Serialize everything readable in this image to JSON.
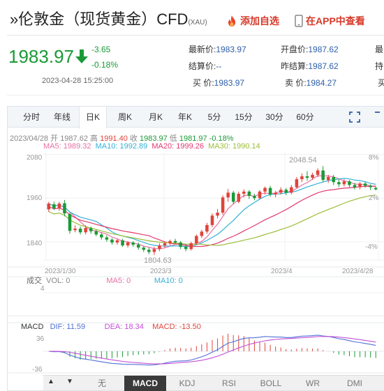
{
  "header": {
    "title": "»伦敦金（现货黄金）CFD",
    "title_unit": "(XAU)",
    "watch_label": "添加自选",
    "app_label": "在APP中查看"
  },
  "quote": {
    "price": "1983.97",
    "change": "-3.65",
    "change_pct": "-0.18%",
    "time": "2023-04-28 15:25:00",
    "fields": [
      {
        "label": "最新价:",
        "value": "1983.97"
      },
      {
        "label": "开盘价:",
        "value": "1987.62"
      },
      {
        "label": "最",
        "value": ""
      },
      {
        "label": "结算价:",
        "value": "--"
      },
      {
        "label": "昨结算:",
        "value": "1987.62"
      },
      {
        "label": "持",
        "value": ""
      },
      {
        "label": "买  价:",
        "value": "1983.97"
      },
      {
        "label": "卖  价:",
        "value": "1984.27"
      },
      {
        "label": "买",
        "value": ""
      }
    ]
  },
  "tabs": [
    "分时",
    "年线",
    "日K",
    "周K",
    "月K",
    "年K",
    "5分",
    "15分",
    "30分",
    "60分"
  ],
  "active_tab": "日K",
  "ohlc": {
    "date": "2023/04/28",
    "open_label": "开",
    "open": "1987.62",
    "high_label": "高",
    "high": "1991.40",
    "close_label": "收",
    "close": "1983.97",
    "low_label": "低",
    "low": "1981.97",
    "pct": "-0.18%"
  },
  "ma": {
    "ma5": "MA5: 1989.32",
    "ma10": "MA10: 1992.89",
    "ma20": "MA20: 1999.26",
    "ma30": "MA30: 1990.14"
  },
  "chart_data": {
    "type": "candlestick",
    "y_ticks": [
      "2080",
      "1960",
      "1840"
    ],
    "y_pct_ticks": [
      "8%",
      "2%",
      "-4%"
    ],
    "x_ticks": [
      "2023/1/30",
      "2023/3",
      "2023/4",
      "2023/4/28"
    ],
    "annotations": {
      "max": "2048.54",
      "min": "1804.63"
    },
    "ylim": [
      1790,
      2085
    ],
    "candles": [
      [
        1929,
        1945,
        1922,
        1950
      ],
      [
        1943,
        1932,
        1928,
        1950
      ],
      [
        1932,
        1945,
        1925,
        1950
      ],
      [
        1946,
        1918,
        1910,
        1955
      ],
      [
        1916,
        1870,
        1862,
        1920
      ],
      [
        1872,
        1876,
        1866,
        1885
      ],
      [
        1876,
        1866,
        1860,
        1882
      ],
      [
        1866,
        1878,
        1860,
        1885
      ],
      [
        1877,
        1869,
        1862,
        1882
      ],
      [
        1869,
        1860,
        1855,
        1873
      ],
      [
        1860,
        1852,
        1846,
        1866
      ],
      [
        1852,
        1846,
        1840,
        1858
      ],
      [
        1846,
        1838,
        1832,
        1850
      ],
      [
        1838,
        1844,
        1832,
        1848
      ],
      [
        1844,
        1830,
        1826,
        1848
      ],
      [
        1830,
        1838,
        1824,
        1842
      ],
      [
        1838,
        1832,
        1826,
        1842
      ],
      [
        1832,
        1824,
        1818,
        1838
      ],
      [
        1824,
        1818,
        1812,
        1828
      ],
      [
        1818,
        1812,
        1806,
        1824
      ],
      [
        1812,
        1820,
        1804,
        1826
      ],
      [
        1820,
        1830,
        1814,
        1836
      ],
      [
        1830,
        1836,
        1824,
        1840
      ],
      [
        1836,
        1842,
        1830,
        1846
      ],
      [
        1842,
        1838,
        1834,
        1848
      ],
      [
        1838,
        1826,
        1820,
        1842
      ],
      [
        1826,
        1820,
        1814,
        1832
      ],
      [
        1820,
        1836,
        1816,
        1840
      ],
      [
        1836,
        1856,
        1832,
        1860
      ],
      [
        1856,
        1868,
        1850,
        1873
      ],
      [
        1868,
        1886,
        1862,
        1892
      ],
      [
        1886,
        1912,
        1880,
        1918
      ],
      [
        1912,
        1920,
        1904,
        1930
      ],
      [
        1920,
        1962,
        1914,
        1968
      ],
      [
        1962,
        1975,
        1950,
        1985
      ],
      [
        1975,
        1950,
        1944,
        1980
      ],
      [
        1950,
        1972,
        1946,
        1978
      ],
      [
        1972,
        1978,
        1962,
        1984
      ],
      [
        1978,
        1966,
        1958,
        1982
      ],
      [
        1966,
        1960,
        1954,
        1972
      ],
      [
        1960,
        1978,
        1956,
        1982
      ],
      [
        1978,
        1988,
        1970,
        1992
      ],
      [
        1988,
        1970,
        1964,
        1994
      ],
      [
        1970,
        1975,
        1962,
        1980
      ],
      [
        1975,
        1983,
        1970,
        1990
      ],
      [
        1983,
        1975,
        1968,
        1988
      ],
      [
        1975,
        1990,
        1970,
        1996
      ],
      [
        1990,
        2012,
        1986,
        2018
      ],
      [
        2012,
        2020,
        2004,
        2028
      ],
      [
        2020,
        2016,
        2008,
        2034
      ],
      [
        2016,
        2024,
        2010,
        2030
      ],
      [
        2024,
        2036,
        2018,
        2042
      ],
      [
        2036,
        2010,
        2004,
        2048
      ],
      [
        2010,
        2018,
        2002,
        2024
      ],
      [
        2018,
        2004,
        1996,
        2024
      ],
      [
        2004,
        1998,
        1990,
        2012
      ],
      [
        1998,
        2006,
        1992,
        2012
      ],
      [
        2006,
        1996,
        1990,
        2010
      ],
      [
        1996,
        1990,
        1984,
        2002
      ],
      [
        1990,
        2000,
        1984,
        2004
      ],
      [
        2000,
        1994,
        1988,
        2006
      ],
      [
        1994,
        1990,
        1982,
        1998
      ],
      [
        1988,
        1984,
        1981,
        1992
      ]
    ],
    "ma_series": [
      {
        "name": "MA5",
        "color": "#e86fa5"
      },
      {
        "name": "MA10",
        "color": "#34b0d8"
      },
      {
        "name": "MA20",
        "color": "#e03a6e"
      },
      {
        "name": "MA30",
        "color": "#9cbd3a"
      }
    ]
  },
  "volume": {
    "label": "成交",
    "vol": "VOL: 0",
    "ma5": "MA5: 0",
    "ma10": "MA10: 0",
    "axis_val": "4"
  },
  "macd": {
    "label": "MACD",
    "dif": "DIF: 11.59",
    "dea": "DEA: 18.34",
    "macd": "MACD: -13.50",
    "y_top": "36",
    "y_bot": "-36"
  },
  "indicators": [
    "无",
    "MACD",
    "KDJ",
    "RSI",
    "BOLL",
    "WR",
    "DMI"
  ],
  "active_indicator": "MACD",
  "colors": {
    "up": "#e0433a",
    "down": "#1a9a36",
    "link": "#2e5fa8",
    "accent": "#d63a2a"
  }
}
